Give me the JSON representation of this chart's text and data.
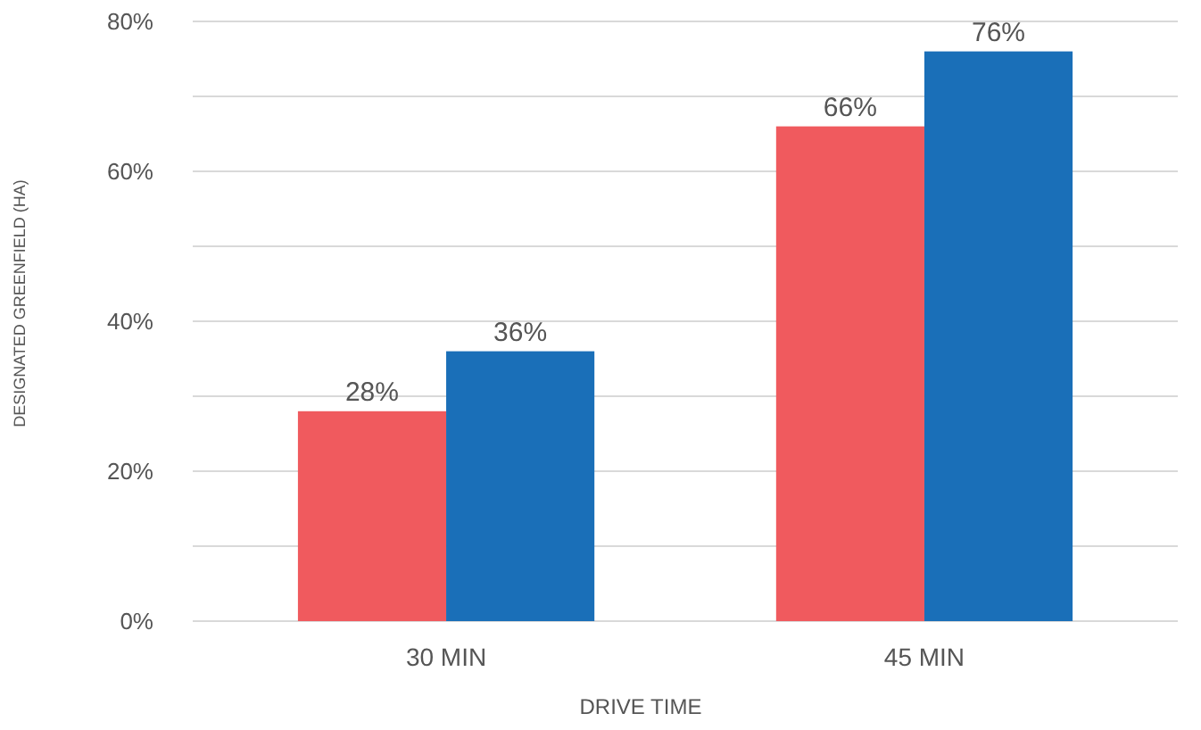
{
  "chart_data": {
    "type": "bar",
    "xlabel": "DRIVE TIME",
    "ylabel": "DESIGNATED GREENFIELD (HA)",
    "categories": [
      "30 MIN",
      "45 MIN"
    ],
    "series": [
      {
        "color": "#f05a5e",
        "values": [
          28,
          66
        ],
        "value_labels": [
          "28%",
          "66%"
        ]
      },
      {
        "color": "#1a6fb8",
        "values": [
          36,
          76
        ],
        "value_labels": [
          "36%",
          "76%"
        ]
      }
    ],
    "ylim": [
      0,
      80
    ],
    "yticks": [
      {
        "value": 0,
        "label": "0%"
      },
      {
        "value": 10,
        "label": null
      },
      {
        "value": 20,
        "label": "20%"
      },
      {
        "value": 30,
        "label": null
      },
      {
        "value": 40,
        "label": "40%"
      },
      {
        "value": 50,
        "label": null
      },
      {
        "value": 60,
        "label": "60%"
      },
      {
        "value": 70,
        "label": null
      },
      {
        "value": 80,
        "label": "80%"
      }
    ],
    "grid": "y"
  }
}
